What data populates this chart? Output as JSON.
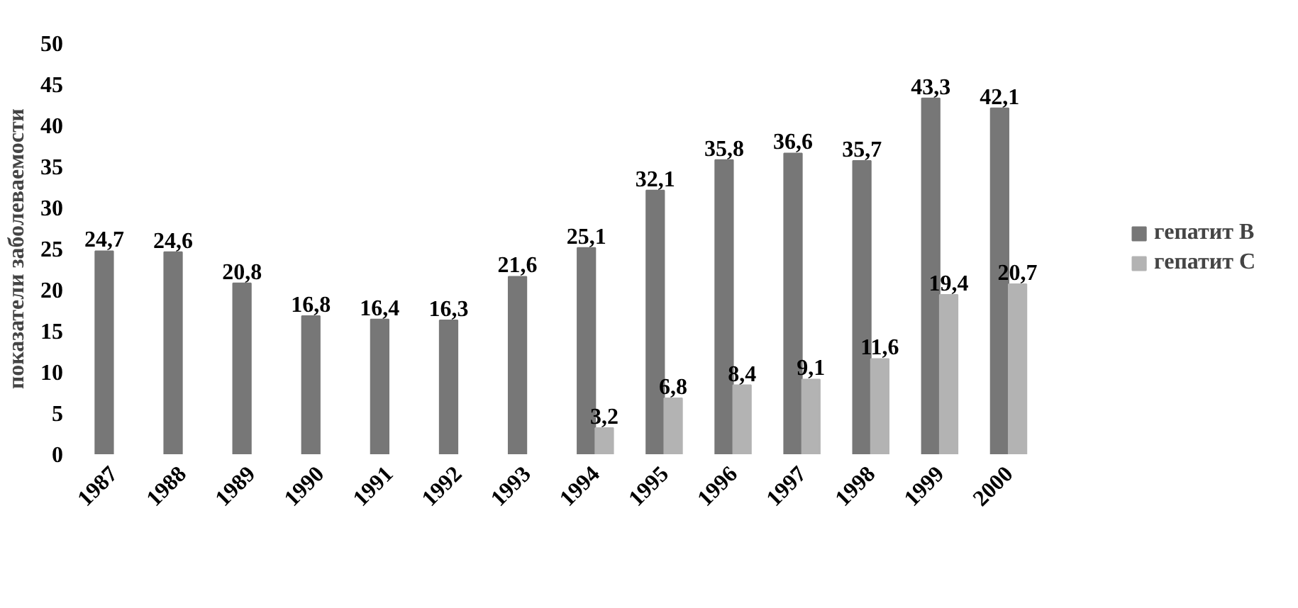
{
  "chart_data": {
    "type": "bar",
    "ylabel": "показатели заболеваемости",
    "categories": [
      "1987",
      "1988",
      "1989",
      "1990",
      "1991",
      "1992",
      "1993",
      "1994",
      "1995",
      "1996",
      "1997",
      "1998",
      "1999",
      "2000"
    ],
    "series": [
      {
        "name": "гепатит В",
        "color": "#777777",
        "values": [
          24.7,
          24.6,
          20.8,
          16.8,
          16.4,
          16.3,
          21.6,
          25.1,
          32.1,
          35.8,
          36.6,
          35.7,
          43.3,
          42.1
        ],
        "value_labels": [
          "24,7",
          "24,6",
          "20,8",
          "16,8",
          "16,4",
          "16,3",
          "21,6",
          "25,1",
          "32,1",
          "35,8",
          "36,6",
          "35,7",
          "43,3",
          "42,1"
        ]
      },
      {
        "name": "гепатит С",
        "color": "#b3b3b3",
        "values": [
          null,
          null,
          null,
          null,
          null,
          null,
          null,
          3.2,
          6.8,
          8.4,
          9.1,
          11.6,
          19.4,
          20.7
        ],
        "value_labels": [
          null,
          null,
          null,
          null,
          null,
          null,
          null,
          "3,2",
          "6,8",
          "8,4",
          "9,1",
          "11,6",
          "19,4",
          "20,7"
        ]
      }
    ],
    "ylim": [
      0,
      50
    ],
    "yticks": [
      0,
      5,
      10,
      15,
      20,
      25,
      30,
      35,
      40,
      45,
      50
    ],
    "grid": false,
    "legend": "right"
  }
}
